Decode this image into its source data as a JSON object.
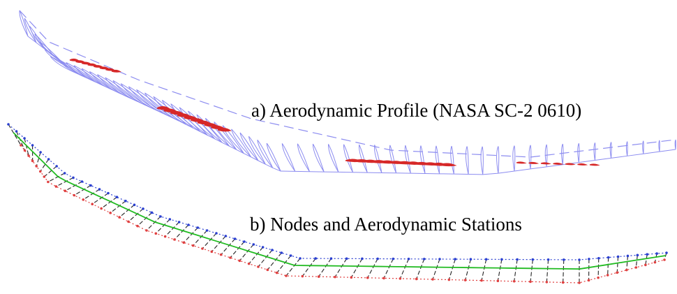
{
  "captions": {
    "a": "a) Aerodynamic Profile (NASA SC-2 0610)",
    "b": "b) Nodes and Aerodynamic Stations"
  },
  "colors": {
    "profile_outline": "#8c8cf0",
    "profile_highlight": "#d62828",
    "node_connector": "#222222",
    "leading_edge_nodes": "#2a3fd0",
    "trailing_edge_nodes": "#e04040",
    "elastic_axis": "#22bb22",
    "background": "#ffffff"
  }
}
